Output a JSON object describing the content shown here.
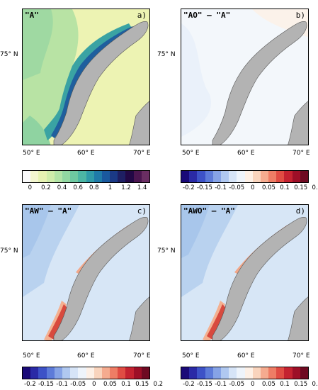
{
  "panels": [
    {
      "title": "\"A\"",
      "label": "a)",
      "scheme": "seq"
    },
    {
      "title": "\"AO\" – \"A\"",
      "label": "b)",
      "scheme": "nearzero"
    },
    {
      "title": "\"AW\" – \"A\"",
      "label": "c)",
      "scheme": "div"
    },
    {
      "title": "\"AWO\" – \"A\"",
      "label": "d)",
      "scheme": "div"
    }
  ],
  "axes": {
    "lat_label": "75° N",
    "lon_labels": [
      "50° E",
      "60° E",
      "70° E"
    ]
  },
  "colorbars": {
    "seq": {
      "colors": [
        "#fbfbfb",
        "#f3f6cf",
        "#e6f2b2",
        "#cfedaa",
        "#b2e4a6",
        "#92d8a2",
        "#6ec9a1",
        "#4cb6a4",
        "#2f9ba8",
        "#1f7ba8",
        "#1a599e",
        "#1b3a86",
        "#1e1f63",
        "#220845",
        "#4b1650",
        "#6a2e63"
      ],
      "labels": [
        "0",
        "0.2",
        "0.4",
        "0.6",
        "0.8",
        "1",
        "1.2",
        "1.4"
      ]
    },
    "div": {
      "colors": [
        "#1a0a78",
        "#2a2aa6",
        "#3d52c7",
        "#5d7bd9",
        "#86a3e6",
        "#b0c8f0",
        "#d6e4f7",
        "#eef4fb",
        "#fdf0e6",
        "#f9d4bd",
        "#f5ab8f",
        "#ee7d65",
        "#e04c43",
        "#c42230",
        "#9d0f27",
        "#6e0a22"
      ],
      "labels": [
        "-0.2",
        "-0.15",
        "-0.1",
        "-0.05",
        "0",
        "0.05",
        "0.1",
        "0.15",
        "0.2"
      ]
    }
  }
}
